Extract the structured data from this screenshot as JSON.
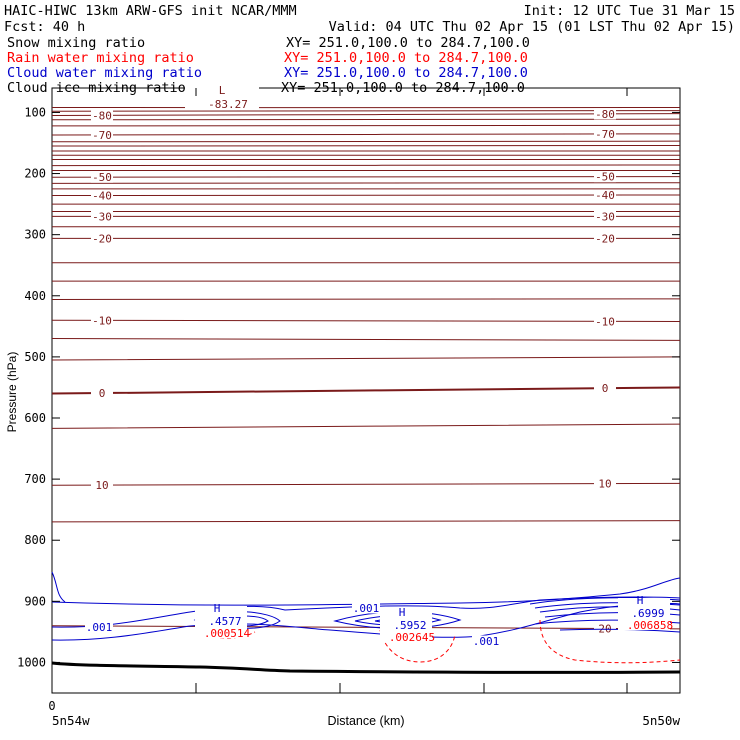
{
  "header": {
    "line1_left": "HAIC-HIWC 13km ARW-GFS init   NCAR/MMM",
    "line1_right": "Init: 12 UTC Tue 31 Mar 15",
    "line2_left": "Fcst:   40 h",
    "line2_right": "Valid: 04 UTC Thu 02 Apr 15 (01 LST Thu 02 Apr 15)"
  },
  "fields": [
    {
      "name": "Snow mixing ratio",
      "xy": "XY= 251.0,100.0 to 284.7,100.0",
      "color": "#000000"
    },
    {
      "name": "Rain water mixing ratio",
      "xy": "XY= 251.0,100.0 to 284.7,100.0",
      "color": "#ff0000"
    },
    {
      "name": "Cloud water mixing ratio",
      "xy": "XY= 251.0,100.0 to 284.7,100.0",
      "color": "#0000cc"
    },
    {
      "name": "Cloud ice mixing ratio",
      "xy": "XY= 251.0,100.0 to 284.7,100.0",
      "color": "#000000"
    }
  ],
  "chart_data": {
    "type": "line",
    "xlabel": "Distance (km)",
    "ylabel": "Pressure (hPa)",
    "ylim": [
      1050,
      60
    ],
    "y_ticks": [
      100,
      200,
      300,
      400,
      500,
      600,
      700,
      800,
      900,
      1000
    ],
    "x_tick_labels": [
      "0"
    ],
    "x_end_labels": [
      "5n54w",
      "5n50w"
    ],
    "colors": {
      "temperature": "#7a1a1a",
      "cloud_water": "#0000cc",
      "rain": "#ff0000",
      "ground": "#000000"
    },
    "isotherms": [
      {
        "label": "-80",
        "p_left": 105,
        "p_right": 102
      },
      {
        "label": "-70",
        "p_left": 137,
        "p_right": 135
      },
      {
        "label": "-50",
        "p_left": 206,
        "p_right": 205
      },
      {
        "label": "-40",
        "p_left": 236,
        "p_right": 235
      },
      {
        "label": "-30",
        "p_left": 270,
        "p_right": 270
      },
      {
        "label": "-20",
        "p_left": 306,
        "p_right": 306
      },
      {
        "label": "-10",
        "p_left": 440,
        "p_right": 442
      },
      {
        "label": "0",
        "p_left": 560,
        "p_right": 550
      },
      {
        "label": "10",
        "p_left": 710,
        "p_right": 707
      },
      {
        "label": "20",
        "p_left": 940,
        "p_right": 945
      }
    ],
    "min_label": {
      "mark": "L",
      "value": "-83.27"
    },
    "cloud_water_labels": [
      ".001",
      ".001",
      ".001"
    ],
    "maxima": [
      {
        "mark": "H",
        "cloud_value": ".4577",
        "rain_value": ".000514"
      },
      {
        "mark": "H",
        "cloud_value": ".5952",
        "rain_value": ".002645"
      },
      {
        "mark": "H",
        "cloud_value": ".6999",
        "rain_value": ".006858"
      }
    ]
  }
}
